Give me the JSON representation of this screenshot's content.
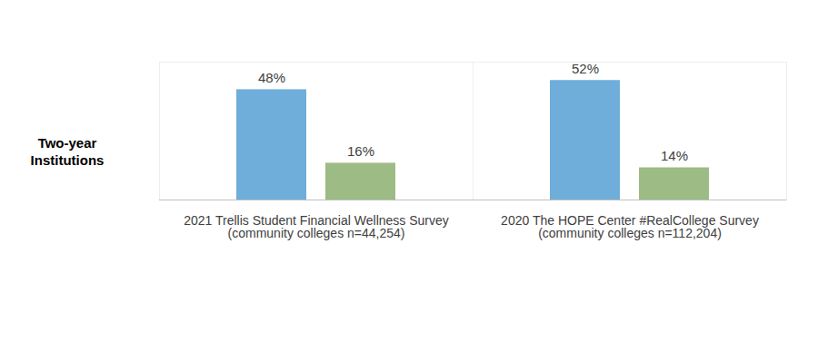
{
  "chart_data": {
    "type": "bar",
    "ylabel": "Two-year Institutions",
    "categories": [
      "2021 Trellis Student Financial Wellness Survey (community colleges n=44,254)",
      "2020 The HOPE Center #RealCollege Survey (community colleges n=112,204)"
    ],
    "series": [
      {
        "color": "#6FAEDB",
        "values": [
          48,
          52
        ],
        "value_labels": [
          "48%",
          "52%"
        ]
      },
      {
        "color": "#9DBB84",
        "values": [
          16,
          14
        ],
        "value_labels": [
          "16%",
          "14%"
        ]
      }
    ],
    "ylim": [
      0,
      60
    ],
    "tick_labels": "x",
    "data_labels": true,
    "grid": false
  }
}
